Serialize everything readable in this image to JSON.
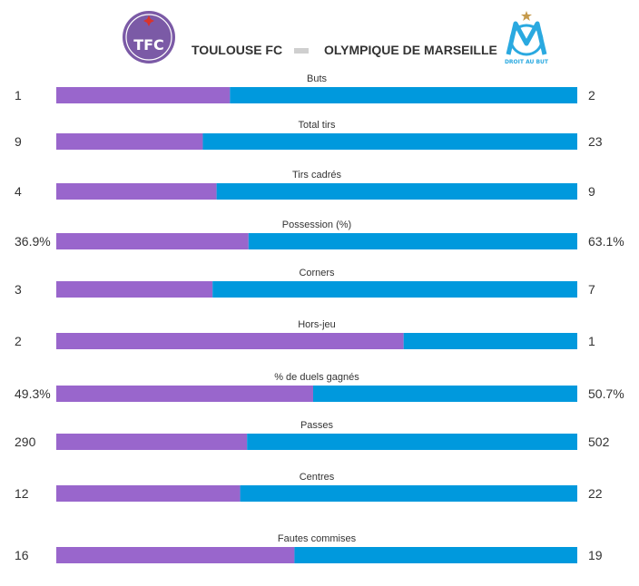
{
  "header": {
    "home_team": "TOULOUSE FC",
    "away_team": "OLYMPIQUE DE MARSEILLE",
    "home_logo_text": "TFC",
    "away_logo_caption": "DROIT AU BUT"
  },
  "colors": {
    "home": "#9966cc",
    "away": "#0099dd",
    "home_logo": "#7b5aa6",
    "away_logo": "#2aa9e0",
    "away_star": "#c59a4c"
  },
  "chart_data": {
    "type": "bar",
    "orientation": "horizontal",
    "stacked": true,
    "normalized": true,
    "series": [
      {
        "name": "TOULOUSE FC",
        "color": "#9966cc"
      },
      {
        "name": "OLYMPIQUE DE MARSEILLE",
        "color": "#0099dd"
      }
    ],
    "stats": [
      {
        "label": "Buts",
        "home": 1,
        "away": 2,
        "home_display": "1",
        "away_display": "2"
      },
      {
        "label": "Total tirs",
        "home": 9,
        "away": 23,
        "home_display": "9",
        "away_display": "23"
      },
      {
        "label": "Tirs cadrés",
        "home": 4,
        "away": 9,
        "home_display": "4",
        "away_display": "9"
      },
      {
        "label": "Possession (%)",
        "home": 36.9,
        "away": 63.1,
        "home_display": "36.9%",
        "away_display": "63.1%"
      },
      {
        "label": "Corners",
        "home": 3,
        "away": 7,
        "home_display": "3",
        "away_display": "7"
      },
      {
        "label": "Hors-jeu",
        "home": 2,
        "away": 1,
        "home_display": "2",
        "away_display": "1"
      },
      {
        "label": "% de duels gagnés",
        "home": 49.3,
        "away": 50.7,
        "home_display": "49.3%",
        "away_display": "50.7%"
      },
      {
        "label": "Passes",
        "home": 290,
        "away": 502,
        "home_display": "290",
        "away_display": "502"
      },
      {
        "label": "Centres",
        "home": 12,
        "away": 22,
        "home_display": "12",
        "away_display": "22"
      },
      {
        "label": "Fautes commises",
        "home": 16,
        "away": 19,
        "home_display": "16",
        "away_display": "19"
      }
    ]
  }
}
